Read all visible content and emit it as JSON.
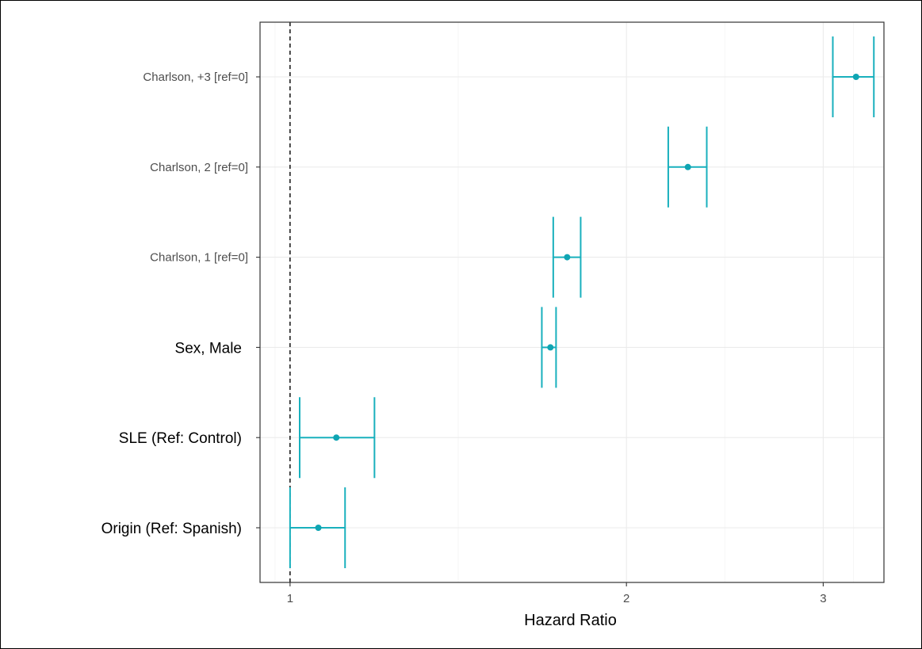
{
  "chart_data": {
    "type": "forest",
    "xlabel": "Hazard Ratio",
    "x_scale": "log",
    "xlim": [
      0.94,
      3.4
    ],
    "xticks": [
      1,
      2,
      3
    ],
    "xtick_labels": [
      "1",
      "2",
      "3"
    ],
    "reference_line": 1,
    "grid": true,
    "color": "#19b0bd",
    "categories": [
      "Charlson, +3 [ref=0]",
      "Charlson, 2 [ref=0]",
      "Charlson, 1 [ref=0]",
      "Sex, Male",
      "SLE (Ref: Control)",
      "Origin (Ref: Spanish)"
    ],
    "points": [
      {
        "label": "Charlson, +3 [ref=0]",
        "estimate": 3.21,
        "lower": 3.06,
        "upper": 3.33
      },
      {
        "label": "Charlson, 2 [ref=0]",
        "estimate": 2.27,
        "lower": 2.18,
        "upper": 2.36
      },
      {
        "label": "Charlson, 1 [ref=0]",
        "estimate": 1.77,
        "lower": 1.72,
        "upper": 1.82
      },
      {
        "label": "Sex, Male",
        "estimate": 1.71,
        "lower": 1.68,
        "upper": 1.73
      },
      {
        "label": "SLE (Ref: Control)",
        "estimate": 1.1,
        "lower": 1.02,
        "upper": 1.19
      },
      {
        "label": "Origin (Ref: Spanish)",
        "estimate": 1.06,
        "lower": 1.0,
        "upper": 1.12
      }
    ]
  }
}
